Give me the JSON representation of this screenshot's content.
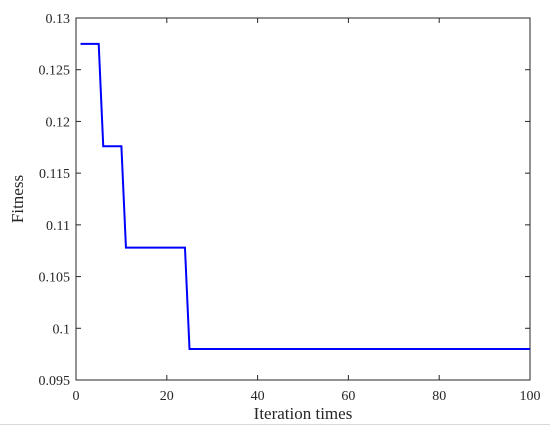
{
  "chart_data": {
    "type": "line",
    "title": "",
    "xlabel": "Iteration times",
    "ylabel": "Fitness",
    "xlim": [
      0,
      100
    ],
    "ylim": [
      0.095,
      0.13
    ],
    "xticks": [
      0,
      20,
      40,
      60,
      80,
      100
    ],
    "xtick_labels": [
      "0",
      "20",
      "40",
      "60",
      "80",
      "100"
    ],
    "yticks": [
      0.095,
      0.1,
      0.105,
      0.11,
      0.115,
      0.12,
      0.125,
      0.13
    ],
    "ytick_labels": [
      "0.095",
      "0.1",
      "0.105",
      "0.11",
      "0.115",
      "0.12",
      "0.125",
      "0.13"
    ],
    "grid": false,
    "line_color": "#0000ff",
    "series": [
      {
        "x": [
          1,
          5,
          6,
          10,
          11,
          24,
          25,
          100
        ],
        "y": [
          0.1275,
          0.1275,
          0.1176,
          0.1176,
          0.1078,
          0.1078,
          0.098,
          0.098
        ]
      }
    ]
  }
}
